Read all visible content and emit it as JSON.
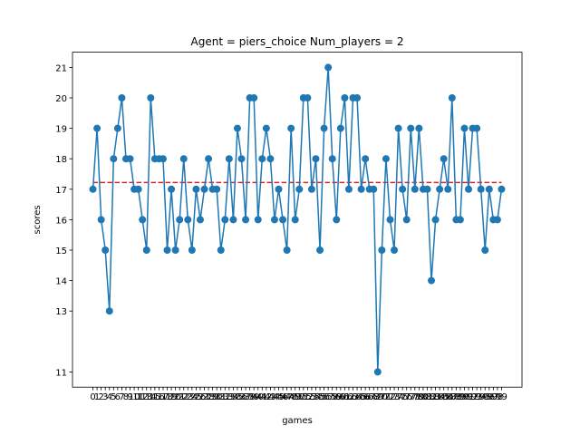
{
  "chart_data": {
    "type": "line",
    "title": "Agent = piers_choice  Num_players = 2",
    "xlabel": "games",
    "ylabel": "scores",
    "x": [
      0,
      1,
      2,
      3,
      4,
      5,
      6,
      7,
      8,
      9,
      10,
      11,
      12,
      13,
      14,
      15,
      16,
      17,
      18,
      19,
      20,
      21,
      22,
      23,
      24,
      25,
      26,
      27,
      28,
      29,
      30,
      31,
      32,
      33,
      34,
      35,
      36,
      37,
      38,
      39,
      40,
      41,
      42,
      43,
      44,
      45,
      46,
      47,
      48,
      49,
      50,
      51,
      52,
      53,
      54,
      55,
      56,
      57,
      58,
      59,
      60,
      61,
      62,
      63,
      64,
      65,
      66,
      67,
      68,
      69,
      70,
      71,
      72,
      73,
      74,
      75,
      76,
      77,
      78,
      79,
      80,
      81,
      82,
      83,
      84,
      85,
      86,
      87,
      88,
      89,
      90,
      91,
      92,
      93,
      94,
      95,
      96,
      97,
      98,
      99
    ],
    "series": [
      {
        "values": [
          17,
          19,
          16,
          15,
          13,
          18,
          19,
          20,
          18,
          18,
          17,
          17,
          16,
          15,
          20,
          18,
          18,
          18,
          15,
          17,
          15,
          16,
          18,
          16,
          15,
          17,
          16,
          17,
          18,
          17,
          17,
          15,
          16,
          18,
          16,
          19,
          18,
          16,
          20,
          20,
          16,
          18,
          19,
          18,
          16,
          17,
          16,
          15,
          19,
          16,
          17,
          20,
          20,
          17,
          18,
          15,
          19,
          21,
          18,
          16,
          19,
          20,
          17,
          20,
          20,
          17,
          18,
          17,
          17,
          11,
          15,
          18,
          16,
          15,
          19,
          17,
          16,
          19,
          17,
          19,
          17,
          17,
          14,
          16,
          17,
          18,
          17,
          20,
          16,
          16,
          19,
          17,
          19,
          19,
          17,
          15,
          17,
          16,
          16,
          17
        ],
        "color": "#1f77b4"
      }
    ],
    "reference_line": {
      "value": 17.22,
      "color": "#d62728",
      "style": "dashed"
    },
    "yticks": [
      11,
      13,
      14,
      15,
      16,
      17,
      18,
      19,
      20,
      21
    ],
    "xlim": [
      -4.95,
      103.95
    ],
    "ylim": [
      10.5,
      21.5
    ],
    "grid": false,
    "legend": "none"
  }
}
